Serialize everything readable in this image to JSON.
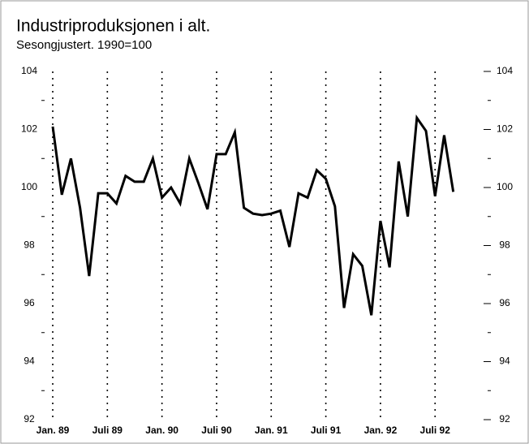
{
  "chart_data": {
    "type": "line",
    "title": "Industriproduksjonen i alt.",
    "subtitle": "Sesongjustert. 1990=100",
    "categories": [
      "Jan. 89",
      null,
      null,
      null,
      null,
      null,
      "Juli 89",
      null,
      null,
      null,
      null,
      null,
      "Jan. 90",
      null,
      null,
      null,
      null,
      null,
      "Juli 90",
      null,
      null,
      null,
      null,
      null,
      "Jan. 91",
      null,
      null,
      null,
      null,
      null,
      "Juli 91",
      null,
      null,
      null,
      null,
      null,
      "Jan. 92",
      null,
      null,
      null,
      null,
      null,
      "Juli 92",
      null,
      null
    ],
    "series": [
      {
        "color": "#000000",
        "values": [
          102.1,
          99.75,
          101.0,
          99.3,
          96.95,
          99.8,
          99.8,
          99.45,
          100.4,
          100.2,
          100.2,
          101.0,
          99.65,
          100.0,
          99.45,
          101.0,
          100.15,
          99.25,
          101.15,
          101.15,
          101.9,
          99.3,
          99.1,
          99.05,
          99.1,
          99.2,
          97.95,
          99.8,
          99.65,
          100.6,
          100.3,
          99.35,
          95.85,
          97.7,
          97.3,
          95.6,
          98.85,
          97.25,
          100.9,
          99.0,
          102.4,
          101.95,
          99.7,
          101.8,
          99.85
        ]
      }
    ],
    "ylim": [
      92,
      104
    ],
    "yticks": [
      92,
      94,
      96,
      98,
      100,
      102,
      104
    ],
    "yminorticks": [
      93,
      95,
      97,
      99,
      101,
      103
    ],
    "right_axis": true,
    "grid": "dotted-vertical"
  }
}
